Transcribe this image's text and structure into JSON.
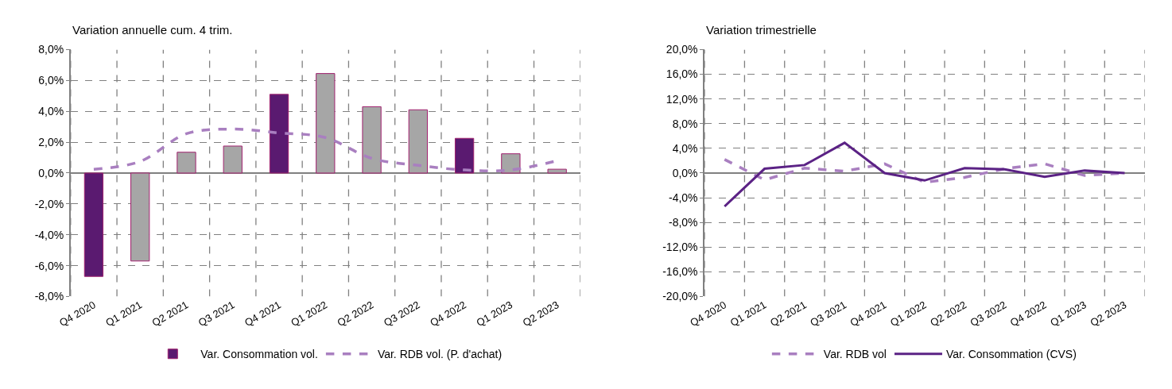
{
  "chart_data": [
    {
      "type": "bar",
      "title": "Variation annuelle cum. 4 trim.",
      "categories": [
        "Q4 2020",
        "Q1 2021",
        "Q2 2021",
        "Q3 2021",
        "Q4 2021",
        "Q1 2022",
        "Q2 2022",
        "Q3 2022",
        "Q4 2022",
        "Q1 2023",
        "Q2 2023"
      ],
      "series": [
        {
          "name": "Var. Consommation vol.",
          "type": "bar",
          "color": "#a6a6a6",
          "colors": [
            "#5a1a70",
            "#a6a6a6",
            "#a6a6a6",
            "#a6a6a6",
            "#5a1a70",
            "#a6a6a6",
            "#a6a6a6",
            "#a6a6a6",
            "#5a1a70",
            "#a6a6a6",
            "#a6a6a6"
          ],
          "values": [
            -6.7,
            -5.7,
            1.35,
            1.75,
            5.1,
            6.45,
            4.3,
            4.1,
            2.25,
            1.25,
            0.25
          ]
        },
        {
          "name": "Var. RDB vol. (P. d'achat)",
          "type": "line",
          "line_style": "dashed",
          "color": "#a97fc0",
          "values": [
            0.25,
            0.75,
            2.55,
            2.85,
            2.6,
            2.3,
            0.95,
            0.5,
            0.2,
            0.2,
            0.8
          ]
        }
      ],
      "ylim": [
        -8,
        8
      ],
      "yticks": [
        {
          "value": -8,
          "label": "-8,0%"
        },
        {
          "value": -6,
          "label": "-6,0%"
        },
        {
          "value": -4,
          "label": "-4,0%"
        },
        {
          "value": -2,
          "label": "-2,0%"
        },
        {
          "value": 0,
          "label": "0,0%"
        },
        {
          "value": 2,
          "label": "2,0%"
        },
        {
          "value": 4,
          "label": "4,0%"
        },
        {
          "value": 6,
          "label": "6,0%"
        },
        {
          "value": 8,
          "label": "8,0%"
        }
      ],
      "grid": true,
      "legend": "bottom",
      "marker": "none"
    },
    {
      "type": "line",
      "title": "Variation trimestrielle",
      "categories": [
        "Q4 2020",
        "Q1 2021",
        "Q2 2021",
        "Q3 2021",
        "Q4 2021",
        "Q1 2022",
        "Q2 2022",
        "Q3 2022",
        "Q4 2022",
        "Q1 2023",
        "Q2 2023"
      ],
      "series": [
        {
          "name": "Var. RDB vol",
          "line_style": "dashed",
          "color": "#a97fc0",
          "values": [
            2.2,
            -1.1,
            0.8,
            0.3,
            1.5,
            -1.5,
            -0.7,
            0.7,
            1.5,
            -0.4,
            0.0
          ]
        },
        {
          "name": "Var. Consommation (CVS)",
          "line_style": "solid",
          "color": "#5b2285",
          "values": [
            -5.4,
            0.7,
            1.3,
            4.9,
            0.0,
            -1.2,
            0.8,
            0.6,
            -0.6,
            0.4,
            0.0
          ]
        }
      ],
      "ylim": [
        -20,
        20
      ],
      "yticks": [
        {
          "value": -20,
          "label": "-20,0%"
        },
        {
          "value": -16,
          "label": "-16,0%"
        },
        {
          "value": -12,
          "label": "-12,0%"
        },
        {
          "value": -8,
          "label": "-8,0%"
        },
        {
          "value": -4,
          "label": "-4,0%"
        },
        {
          "value": 0,
          "label": "0,0%"
        },
        {
          "value": 4,
          "label": "4,0%"
        },
        {
          "value": 8,
          "label": "8,0%"
        },
        {
          "value": 12,
          "label": "12,0%"
        },
        {
          "value": 16,
          "label": "16,0%"
        },
        {
          "value": 20,
          "label": "20,0%"
        }
      ],
      "grid": true,
      "legend": "bottom",
      "marker": "none"
    }
  ]
}
